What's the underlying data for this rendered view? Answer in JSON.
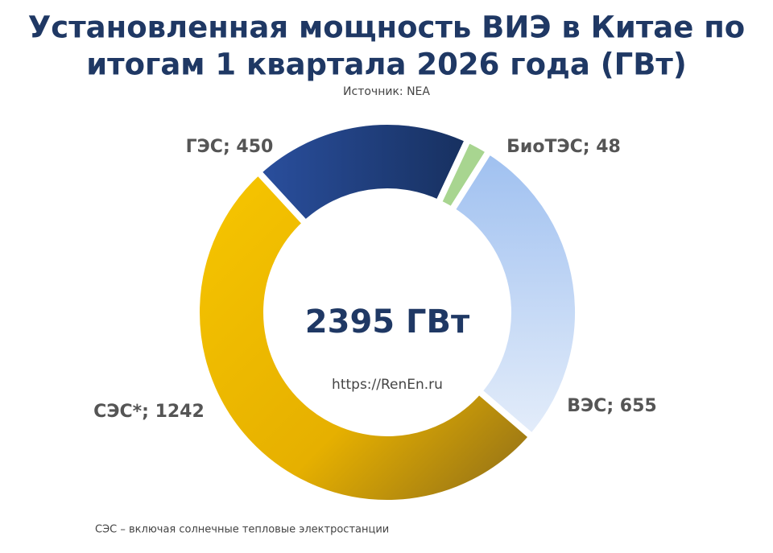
{
  "chart_data": {
    "type": "pie",
    "title": [
      "Установленная мощность ВИЭ в Китае по",
      "итогам 1 квартала 2026 года (ГВт)"
    ],
    "subtitle": "Источник: NEA",
    "center_label": "2395 ГВт",
    "watermark": "https://RenEn.ru",
    "footnote": "СЭС – включая солнечные тепловые электростанции",
    "categories": [
      "ГЭС",
      "БиоТЭС",
      "ВЭС",
      "СЭС*"
    ],
    "values": [
      450,
      48,
      655,
      1242
    ],
    "value_labels": [
      "ГЭС; 450",
      "БиоТЭС; 48",
      "ВЭС; 655",
      "СЭС*; 1242"
    ],
    "colors": [
      "#22408a",
      "#a8d590",
      "#b3ccf2",
      "#eab800"
    ]
  }
}
